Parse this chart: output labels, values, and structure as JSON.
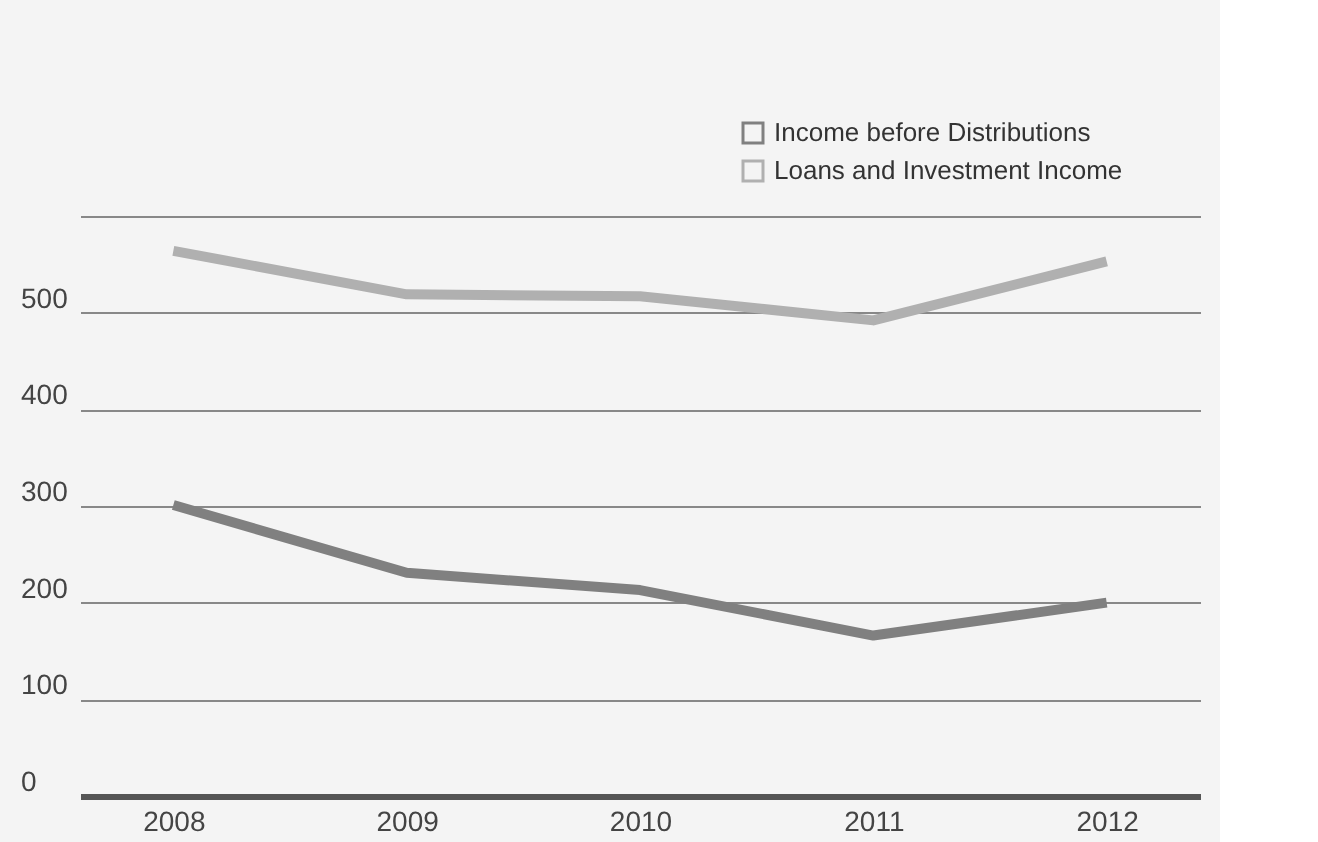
{
  "chart_data": {
    "type": "line",
    "categories": [
      "2008",
      "2009",
      "2010",
      "2011",
      "2012"
    ],
    "series": [
      {
        "name": "Income before Distributions",
        "color": "#808080",
        "values": [
          301,
          231,
          213,
          166,
          200
        ]
      },
      {
        "name": "Loans and Investment Income",
        "color": "#b0b0b0",
        "values": [
          564,
          519,
          517,
          492,
          553
        ]
      }
    ],
    "ylim": [
      0,
      600
    ],
    "yticks": [
      0,
      100,
      200,
      300,
      400,
      500,
      {
        "value": 600,
        "label": null
      }
    ],
    "grid": "y",
    "legend": "top right",
    "marker": "none",
    "line_style": "solid"
  }
}
